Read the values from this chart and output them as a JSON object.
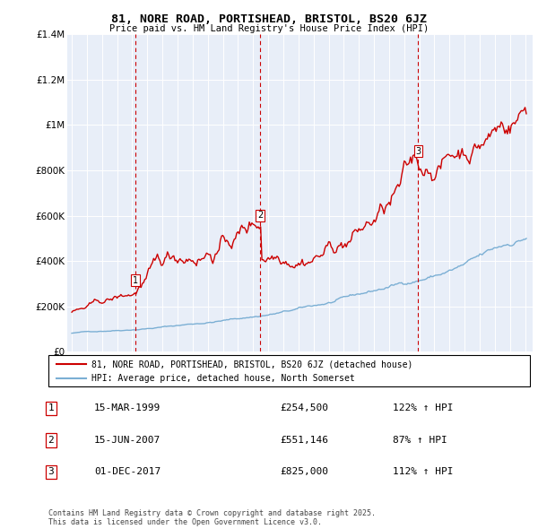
{
  "title": "81, NORE ROAD, PORTISHEAD, BRISTOL, BS20 6JZ",
  "subtitle": "Price paid vs. HM Land Registry's House Price Index (HPI)",
  "ylim": [
    0,
    1400000
  ],
  "yticks": [
    0,
    200000,
    400000,
    600000,
    800000,
    1000000,
    1200000,
    1400000
  ],
  "ytick_labels": [
    "£0",
    "£200K",
    "£400K",
    "£600K",
    "£800K",
    "£1M",
    "£1.2M",
    "£1.4M"
  ],
  "sale_color": "#cc0000",
  "hpi_color": "#7bafd4",
  "vline_color": "#cc0000",
  "sale_label": "81, NORE ROAD, PORTISHEAD, BRISTOL, BS20 6JZ (detached house)",
  "hpi_label": "HPI: Average price, detached house, North Somerset",
  "transactions": [
    {
      "date_num": 1999.21,
      "price": 254500,
      "label": "1"
    },
    {
      "date_num": 2007.46,
      "price": 551146,
      "label": "2"
    },
    {
      "date_num": 2017.92,
      "price": 825000,
      "label": "3"
    }
  ],
  "transaction_rows": [
    {
      "num": "1",
      "date": "15-MAR-1999",
      "price": "£254,500",
      "change": "122% ↑ HPI"
    },
    {
      "num": "2",
      "date": "15-JUN-2007",
      "price": "£551,146",
      "change": "87% ↑ HPI"
    },
    {
      "num": "3",
      "date": "01-DEC-2017",
      "price": "£825,000",
      "change": "112% ↑ HPI"
    }
  ],
  "footnote": "Contains HM Land Registry data © Crown copyright and database right 2025.\nThis data is licensed under the Open Government Licence v3.0.",
  "background_color": "#e8eef8"
}
